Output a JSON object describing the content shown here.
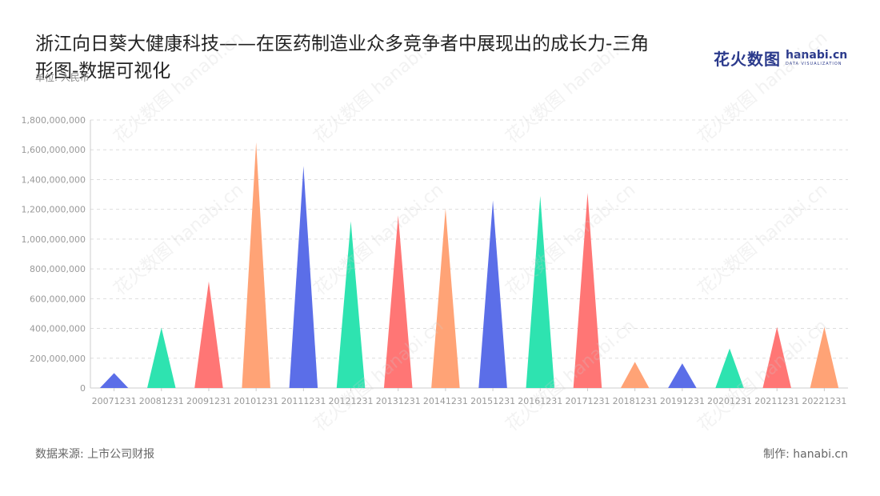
{
  "title": "浙江向日葵大健康科技——在医药制造业众多竞争者中展现出的成长力-三角形图-数据可视化",
  "unit": "单位: 人民币",
  "logo": {
    "cn": "花火数图",
    "en": "hanabi.cn",
    "sub": "DATA VISUALIZATION"
  },
  "footer": {
    "source": "数据来源: 上市公司财报",
    "maker": "制作: hanabi.cn"
  },
  "chart_data": {
    "type": "bar",
    "shape": "triangle",
    "categories": [
      "20071231",
      "20081231",
      "20091231",
      "20101231",
      "20111231",
      "20121231",
      "20131231",
      "20141231",
      "20151231",
      "20161231",
      "20171231",
      "20181231",
      "20191231",
      "20201231",
      "20211231",
      "20221231"
    ],
    "values": [
      100000000,
      405000000,
      715000000,
      1650000000,
      1490000000,
      1120000000,
      1160000000,
      1205000000,
      1260000000,
      1290000000,
      1310000000,
      175000000,
      165000000,
      265000000,
      410000000,
      410000000
    ],
    "colors": [
      "#5b6ee8",
      "#2ee3b0",
      "#ff7675",
      "#ffa376",
      "#5b6ee8",
      "#2ee3b0",
      "#ff7675",
      "#ffa376",
      "#5b6ee8",
      "#2ee3b0",
      "#ff7675",
      "#ffa376",
      "#5b6ee8",
      "#2ee3b0",
      "#ff7675",
      "#ffa376"
    ],
    "yticks": [
      "0",
      "200,000,000",
      "400,000,000",
      "600,000,000",
      "800,000,000",
      "1,000,000,000",
      "1,200,000,000",
      "1,400,000,000",
      "1,600,000,000",
      "1,800,000,000"
    ],
    "ylim": [
      0,
      1800000000
    ],
    "grid": true,
    "title": "浙江向日葵大健康科技——在医药制造业众多竞争者中展现出的成长力-三角形图-数据可视化",
    "xlabel": "",
    "ylabel": "单位: 人民币"
  }
}
